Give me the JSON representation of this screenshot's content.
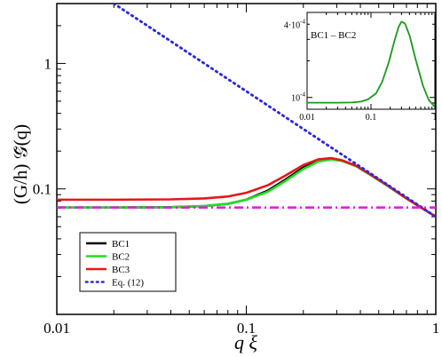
{
  "chart_data": [
    {
      "type": "line",
      "xlabel": "q ξ",
      "ylabel": "(G/h) 𝒢̃(q)",
      "xscale": "log",
      "yscale": "log",
      "xlim": [
        0.01,
        1.0
      ],
      "ylim": [
        0.01,
        3.0
      ],
      "xticks": [
        {
          "v": 0.01,
          "label": "0.01"
        },
        {
          "v": 0.1,
          "label": "0.1"
        },
        {
          "v": 1,
          "label": "1"
        }
      ],
      "yticks": [
        {
          "v": 0.1,
          "label": "0.1"
        },
        {
          "v": 1,
          "label": "1"
        }
      ],
      "legend_position": "lower-left",
      "series": [
        {
          "name": "BC1",
          "color": "#000000",
          "style": "solid",
          "x": [
            0.01,
            0.02,
            0.04,
            0.06,
            0.08,
            0.1,
            0.13,
            0.16,
            0.2,
            0.24,
            0.28,
            0.32,
            0.38,
            0.45,
            0.55,
            0.7,
            0.85,
            1.0
          ],
          "y": [
            0.071,
            0.071,
            0.0715,
            0.073,
            0.076,
            0.082,
            0.097,
            0.118,
            0.148,
            0.168,
            0.174,
            0.168,
            0.152,
            0.13,
            0.107,
            0.084,
            0.07,
            0.06
          ]
        },
        {
          "name": "BC2",
          "color": "#22dd22",
          "style": "solid",
          "x": [
            0.01,
            0.02,
            0.04,
            0.06,
            0.08,
            0.1,
            0.13,
            0.16,
            0.2,
            0.24,
            0.28,
            0.32,
            0.38,
            0.45,
            0.55,
            0.7,
            0.85,
            1.0
          ],
          "y": [
            0.071,
            0.071,
            0.0715,
            0.073,
            0.076,
            0.082,
            0.095,
            0.115,
            0.144,
            0.165,
            0.172,
            0.167,
            0.152,
            0.13,
            0.107,
            0.084,
            0.07,
            0.06
          ]
        },
        {
          "name": "BC3",
          "color": "#e8151b",
          "style": "solid",
          "x": [
            0.01,
            0.02,
            0.04,
            0.06,
            0.08,
            0.1,
            0.13,
            0.16,
            0.2,
            0.24,
            0.28,
            0.32,
            0.38,
            0.45,
            0.55,
            0.7,
            0.85,
            1.0
          ],
          "y": [
            0.082,
            0.082,
            0.0825,
            0.084,
            0.087,
            0.093,
            0.107,
            0.127,
            0.155,
            0.172,
            0.176,
            0.169,
            0.153,
            0.131,
            0.108,
            0.084,
            0.07,
            0.06
          ]
        },
        {
          "name": "Eq. (12)",
          "color": "#2a2ae0",
          "style": "dotted",
          "x": [
            0.02,
            1.0
          ],
          "y": [
            3.0,
            0.06
          ]
        },
        {
          "name": "",
          "color": "#e020e0",
          "style": "dashdot",
          "x": [
            0.01,
            1.0
          ],
          "y": [
            0.071,
            0.071
          ]
        }
      ]
    },
    {
      "type": "line",
      "title": "BC1 – BC2",
      "xscale": "log",
      "yscale": "log",
      "xlim": [
        0.01,
        1.0
      ],
      "ylim": [
        8e-05,
        0.0005
      ],
      "xticks": [
        {
          "v": 0.01,
          "label": "0.01"
        },
        {
          "v": 0.1,
          "label": "0.1"
        },
        {
          "v": 1,
          "label": "1"
        }
      ],
      "yticks": [
        {
          "v": 0.0001,
          "mantissa": "10",
          "exponent": "-4"
        },
        {
          "v": 0.0004,
          "mantissa": "4·10",
          "exponent": "-4"
        }
      ],
      "series": [
        {
          "name": "",
          "color": "#1a9a1a",
          "style": "solid",
          "x": [
            0.01,
            0.03,
            0.05,
            0.07,
            0.09,
            0.12,
            0.15,
            0.19,
            0.23,
            0.27,
            0.3,
            0.34,
            0.4,
            0.5,
            0.65,
            0.8,
            1.0
          ],
          "y": [
            9.05e-05,
            9.05e-05,
            9.1e-05,
            9.25e-05,
            9.65e-05,
            0.000108,
            0.000135,
            0.000195,
            0.000285,
            0.00038,
            0.00042,
            0.000405,
            0.000325,
            0.000205,
            0.000125,
            9.55e-05,
            8.35e-05
          ]
        }
      ]
    }
  ],
  "legend": [
    {
      "label": "BC1",
      "color": "#000000",
      "style": "solid"
    },
    {
      "label": "BC2",
      "color": "#22dd22",
      "style": "solid"
    },
    {
      "label": "BC3",
      "color": "#e8151b",
      "style": "solid"
    },
    {
      "label": "Eq. (12)",
      "color": "#2a2ae0",
      "style": "dotted"
    }
  ]
}
